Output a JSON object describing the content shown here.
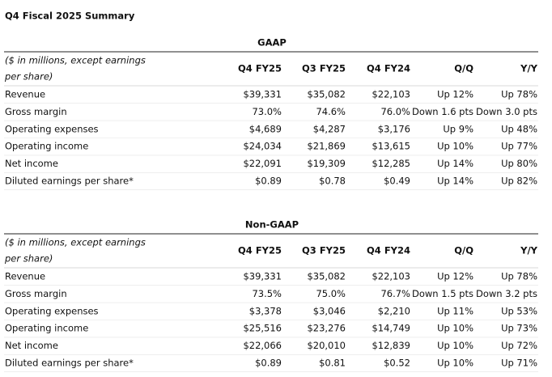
{
  "title": "Q4 Fiscal 2025 Summary",
  "tables": [
    {
      "heading": "GAAP",
      "stub": [
        "($ in millions, except earnings",
        "per share)"
      ],
      "columns": [
        "Q4 FY25",
        "Q3 FY25",
        "Q4 FY24",
        "Q/Q",
        "Y/Y"
      ],
      "rows": [
        [
          "Revenue",
          "$39,331",
          "$35,082",
          "$22,103",
          "Up 12%",
          "Up 78%"
        ],
        [
          "Gross margin",
          "73.0%",
          "74.6%",
          "76.0%",
          "Down 1.6 pts",
          "Down 3.0 pts"
        ],
        [
          "Operating expenses",
          "$4,689",
          "$4,287",
          "$3,176",
          "Up 9%",
          "Up 48%"
        ],
        [
          "Operating income",
          "$24,034",
          "$21,869",
          "$13,615",
          "Up 10%",
          "Up 77%"
        ],
        [
          "Net income",
          "$22,091",
          "$19,309",
          "$12,285",
          "Up 14%",
          "Up 80%"
        ],
        [
          "Diluted earnings per share*",
          "$0.89",
          "$0.78",
          "$0.49",
          "Up 14%",
          "Up 82%"
        ]
      ]
    },
    {
      "heading": "Non-GAAP",
      "stub": [
        "($ in millions, except earnings",
        "per share)"
      ],
      "columns": [
        "Q4 FY25",
        "Q3 FY25",
        "Q4 FY24",
        "Q/Q",
        "Y/Y"
      ],
      "rows": [
        [
          "Revenue",
          "$39,331",
          "$35,082",
          "$22,103",
          "Up 12%",
          "Up 78%"
        ],
        [
          "Gross margin",
          "73.5%",
          "75.0%",
          "76.7%",
          "Down 1.5 pts",
          "Down 3.2 pts"
        ],
        [
          "Operating expenses",
          "$3,378",
          "$3,046",
          "$2,210",
          "Up 11%",
          "Up 53%"
        ],
        [
          "Operating income",
          "$25,516",
          "$23,276",
          "$14,749",
          "Up 10%",
          "Up 73%"
        ],
        [
          "Net income",
          "$22,066",
          "$20,010",
          "$12,839",
          "Up 10%",
          "Up 72%"
        ],
        [
          "Diluted earnings per share*",
          "$0.89",
          "$0.81",
          "$0.52",
          "Up 10%",
          "Up 71%"
        ]
      ]
    }
  ]
}
